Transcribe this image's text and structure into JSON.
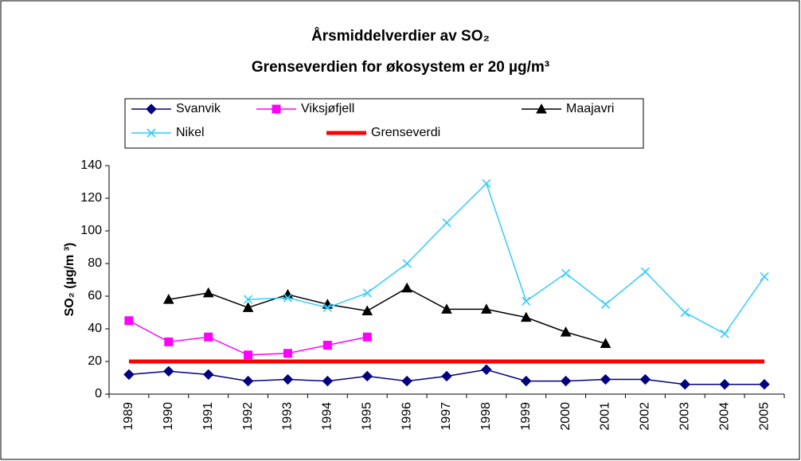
{
  "chart_data": {
    "type": "line",
    "title": "Årsmiddelverdier av SO₂",
    "subtitle": "Grenseverdien for økosystem er 20 µg/m³",
    "y_label": "SO₂ (µg/m ³)",
    "categories": [
      "1989",
      "1990",
      "1991",
      "1992",
      "1993",
      "1994",
      "1995",
      "1996",
      "1997",
      "1998",
      "1999",
      "2000",
      "2001",
      "2002",
      "2003",
      "2004",
      "2005"
    ],
    "series": [
      {
        "name": "Svanvik",
        "color": "#000080",
        "marker": "diamond",
        "values": [
          12,
          14,
          12,
          8,
          9,
          8,
          11,
          8,
          11,
          15,
          8,
          8,
          9,
          9,
          6,
          6,
          6
        ]
      },
      {
        "name": "Viksjøfjell",
        "color": "#FF00FF",
        "marker": "square",
        "values": [
          45,
          32,
          35,
          24,
          25,
          30,
          35,
          null,
          null,
          null,
          null,
          null,
          null,
          null,
          null,
          null,
          null
        ]
      },
      {
        "name": "Maajavri",
        "color": "#000000",
        "marker": "triangle",
        "values": [
          null,
          58,
          62,
          53,
          61,
          55,
          51,
          65,
          52,
          52,
          47,
          38,
          31,
          null,
          null,
          null,
          null
        ]
      },
      {
        "name": "Nikel",
        "color": "#33CCFF",
        "marker": "x",
        "values": [
          null,
          null,
          null,
          58,
          59,
          53,
          62,
          80,
          105,
          129,
          57,
          74,
          55,
          75,
          50,
          37,
          72
        ]
      },
      {
        "name": "Grenseverdi",
        "color": "#FF0000",
        "marker": "none",
        "values": [
          20,
          20,
          20,
          20,
          20,
          20,
          20,
          20,
          20,
          20,
          20,
          20,
          20,
          20,
          20,
          20,
          20
        ]
      }
    ],
    "ylim": [
      0,
      140
    ],
    "yticks": [
      0,
      20,
      40,
      60,
      80,
      100,
      120,
      140
    ],
    "grid": false
  }
}
